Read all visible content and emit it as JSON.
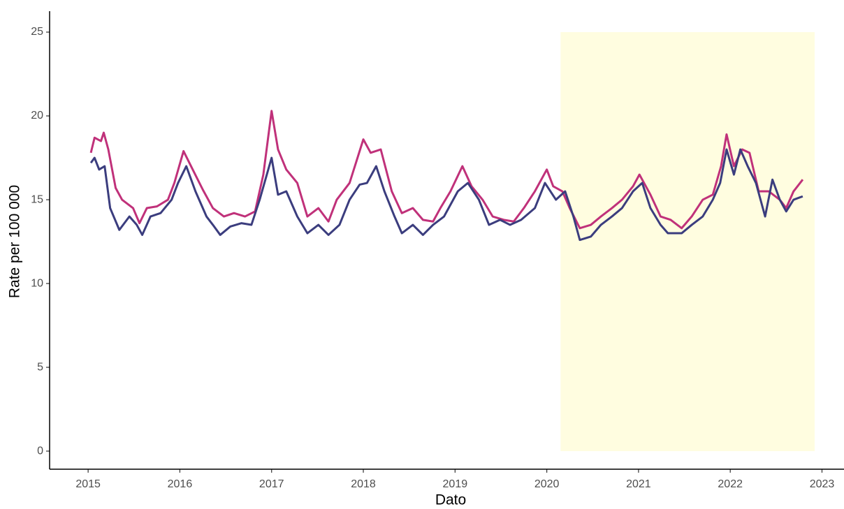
{
  "chart_data": {
    "type": "line",
    "x_label": "Dato",
    "y_label": "Rate per 100 000",
    "xlim": [
      2014.58,
      2023.24
    ],
    "ylim": [
      -1.08,
      26.25
    ],
    "xticks": [
      2015,
      2016,
      2017,
      2018,
      2019,
      2020,
      2021,
      2022,
      2023
    ],
    "yticks": [
      0,
      5,
      10,
      15,
      20,
      25
    ],
    "grid": false,
    "shade": {
      "xlim": [
        2020.15,
        2022.92
      ],
      "ylim": [
        0,
        25
      ],
      "color": "#fffde0"
    },
    "series": [
      {
        "color": "#c0317a",
        "x": [
          2015.03,
          2015.07,
          2015.14,
          2015.17,
          2015.22,
          2015.3,
          2015.37,
          2015.49,
          2015.56,
          2015.64,
          2015.75,
          2015.87,
          2015.94,
          2016.04,
          2016.14,
          2016.25,
          2016.36,
          2016.48,
          2016.59,
          2016.71,
          2016.82,
          2016.91,
          2017.0,
          2017.07,
          2017.16,
          2017.28,
          2017.39,
          2017.51,
          2017.62,
          2017.71,
          2017.85,
          2018.0,
          2018.08,
          2018.19,
          2018.31,
          2018.42,
          2018.54,
          2018.65,
          2018.76,
          2018.84,
          2018.95,
          2019.08,
          2019.18,
          2019.3,
          2019.41,
          2019.53,
          2019.64,
          2019.75,
          2019.87,
          2020.0,
          2020.07,
          2020.17,
          2020.25,
          2020.36,
          2020.48,
          2020.59,
          2020.71,
          2020.82,
          2020.94,
          2021.01,
          2021.13,
          2021.24,
          2021.35,
          2021.47,
          2021.58,
          2021.7,
          2021.81,
          2021.9,
          2021.96,
          2022.04,
          2022.13,
          2022.21,
          2022.31,
          2022.42,
          2022.54,
          2022.61,
          2022.69,
          2022.79
        ],
        "values": [
          17.8,
          18.7,
          18.5,
          19.0,
          18.0,
          15.7,
          15.0,
          14.5,
          13.6,
          14.5,
          14.6,
          15.0,
          16.0,
          17.9,
          16.8,
          15.6,
          14.5,
          14.0,
          14.2,
          14.0,
          14.3,
          16.5,
          20.3,
          18.0,
          16.8,
          16.0,
          14.0,
          14.5,
          13.7,
          15.0,
          16.0,
          18.6,
          17.8,
          18.0,
          15.5,
          14.2,
          14.5,
          13.8,
          13.7,
          14.5,
          15.5,
          17.0,
          15.8,
          15.0,
          14.0,
          13.8,
          13.7,
          14.5,
          15.5,
          16.8,
          15.8,
          15.5,
          14.5,
          13.3,
          13.5,
          14.0,
          14.5,
          15.0,
          15.8,
          16.5,
          15.3,
          14.0,
          13.8,
          13.3,
          14.0,
          15.0,
          15.3,
          17.0,
          18.9,
          17.0,
          18.0,
          17.8,
          15.5,
          15.5,
          15.0,
          14.5,
          15.5,
          16.2
        ]
      },
      {
        "color": "#3b3d7e",
        "x": [
          2015.03,
          2015.07,
          2015.12,
          2015.18,
          2015.24,
          2015.34,
          2015.45,
          2015.53,
          2015.59,
          2015.68,
          2015.79,
          2015.91,
          2015.98,
          2016.07,
          2016.17,
          2016.29,
          2016.36,
          2016.44,
          2016.55,
          2016.67,
          2016.78,
          2016.87,
          2017.0,
          2017.07,
          2017.16,
          2017.28,
          2017.39,
          2017.51,
          2017.62,
          2017.74,
          2017.85,
          2017.96,
          2018.04,
          2018.14,
          2018.23,
          2018.34,
          2018.42,
          2018.54,
          2018.65,
          2018.76,
          2018.88,
          2019.03,
          2019.14,
          2019.26,
          2019.37,
          2019.49,
          2019.6,
          2019.72,
          2019.87,
          2019.98,
          2020.1,
          2020.2,
          2020.29,
          2020.36,
          2020.48,
          2020.59,
          2020.71,
          2020.82,
          2020.94,
          2021.04,
          2021.13,
          2021.24,
          2021.32,
          2021.47,
          2021.58,
          2021.7,
          2021.81,
          2021.89,
          2021.96,
          2022.04,
          2022.11,
          2022.19,
          2022.28,
          2022.38,
          2022.46,
          2022.54,
          2022.61,
          2022.69,
          2022.79
        ],
        "values": [
          17.2,
          17.5,
          16.8,
          17.0,
          14.5,
          13.2,
          14.0,
          13.5,
          12.9,
          14.0,
          14.2,
          15.0,
          16.0,
          17.0,
          15.5,
          14.0,
          13.5,
          12.9,
          13.4,
          13.6,
          13.5,
          15.0,
          17.5,
          15.3,
          15.5,
          14.0,
          13.0,
          13.5,
          12.9,
          13.5,
          15.0,
          15.9,
          16.0,
          17.0,
          15.5,
          14.0,
          13.0,
          13.5,
          12.9,
          13.5,
          14.0,
          15.5,
          16.0,
          15.0,
          13.5,
          13.8,
          13.5,
          13.8,
          14.5,
          16.0,
          15.0,
          15.5,
          14.0,
          12.6,
          12.8,
          13.5,
          14.0,
          14.5,
          15.5,
          16.0,
          14.5,
          13.5,
          13.0,
          13.0,
          13.5,
          14.0,
          15.0,
          16.0,
          18.0,
          16.5,
          18.0,
          17.0,
          16.0,
          14.0,
          16.2,
          15.0,
          14.3,
          15.0,
          15.2
        ]
      }
    ]
  }
}
